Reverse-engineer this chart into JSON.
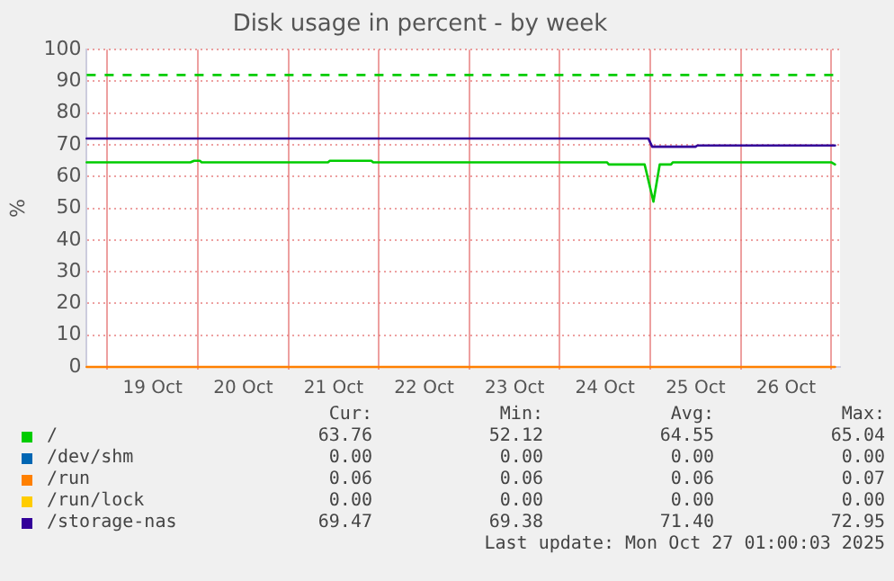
{
  "chart_data": {
    "type": "line",
    "title": "Disk usage in percent - by week",
    "ylabel": "%",
    "xlim": [
      "2025-10-18T18:30",
      "2025-10-27T02:20"
    ],
    "xticks": [
      {
        "value": "2025-10-19T00:00",
        "label": null
      },
      {
        "value": "2025-10-19T12:00",
        "label": "19 Oct"
      },
      {
        "value": "2025-10-20T00:00",
        "label": null
      },
      {
        "value": "2025-10-20T12:00",
        "label": "20 Oct"
      },
      {
        "value": "2025-10-21T00:00",
        "label": null
      },
      {
        "value": "2025-10-21T12:00",
        "label": "21 Oct"
      },
      {
        "value": "2025-10-22T00:00",
        "label": null
      },
      {
        "value": "2025-10-22T12:00",
        "label": "22 Oct"
      },
      {
        "value": "2025-10-23T00:00",
        "label": null
      },
      {
        "value": "2025-10-23T12:00",
        "label": "23 Oct"
      },
      {
        "value": "2025-10-24T00:00",
        "label": null
      },
      {
        "value": "2025-10-24T12:00",
        "label": "24 Oct"
      },
      {
        "value": "2025-10-25T00:00",
        "label": null
      },
      {
        "value": "2025-10-25T12:00",
        "label": "25 Oct"
      },
      {
        "value": "2025-10-26T00:00",
        "label": null
      },
      {
        "value": "2025-10-26T12:00",
        "label": "26 Oct"
      },
      {
        "value": "2025-10-27T00:00",
        "label": null
      }
    ],
    "ylim": [
      0,
      100
    ],
    "yticks": [
      0,
      10,
      20,
      30,
      40,
      50,
      60,
      70,
      80,
      90,
      100
    ],
    "grid": true,
    "legend": "bottom",
    "series": [
      {
        "name": "/",
        "color": "#00cc00",
        "x": [
          "2025-10-18T18:30",
          "2025-10-19T22:00",
          "2025-10-19T23:00",
          "2025-10-20T00:30",
          "2025-10-20T01:00",
          "2025-10-21T10:30",
          "2025-10-21T11:00",
          "2025-10-21T22:00",
          "2025-10-21T22:30",
          "2025-10-24T12:30",
          "2025-10-24T13:00",
          "2025-10-24T22:30",
          "2025-10-25T00:50",
          "2025-10-25T02:30",
          "2025-10-25T05:30",
          "2025-10-25T06:00",
          "2025-10-27T00:00",
          "2025-10-27T01:00"
        ],
        "values": [
          64.5,
          64.5,
          65.0,
          65.0,
          64.5,
          64.5,
          65.0,
          65.0,
          64.5,
          64.5,
          63.8,
          63.8,
          52.1,
          63.8,
          63.8,
          64.5,
          64.5,
          63.8
        ]
      },
      {
        "name": "/dev/shm",
        "color": "#0066b3"
      },
      {
        "name": "/run",
        "color": "#ff8000",
        "x": [
          "2025-10-18T18:30",
          "2025-10-27T01:00"
        ],
        "values": [
          0,
          0
        ]
      },
      {
        "name": "/run/lock",
        "color": "#ffcc00"
      },
      {
        "name": "/storage-nas",
        "color": "#330099",
        "x": [
          "2025-10-18T18:30",
          "2025-10-24T23:30",
          "2025-10-25T00:30",
          "2025-10-25T12:00",
          "2025-10-25T12:30",
          "2025-10-27T01:00"
        ],
        "values": [
          72.0,
          72.0,
          69.4,
          69.4,
          69.8,
          69.8
        ]
      }
    ],
    "ref_lines": [
      {
        "axis": "y",
        "value": 92,
        "color": "#00cc00",
        "line_style": "dashed"
      }
    ],
    "annotations": [
      "Cur:",
      "Min:",
      "Avg:",
      "Max:",
      "63.76",
      "52.12",
      "64.55",
      "65.04",
      "0.00",
      "0.00",
      "0.00",
      "0.00",
      "0.06",
      "0.06",
      "0.06",
      "0.07",
      "0.00",
      "0.00",
      "0.00",
      "0.00",
      "69.47",
      "69.38",
      "71.40",
      "72.95",
      "Last update: Mon Oct 27 01:00:03 2025"
    ]
  }
}
